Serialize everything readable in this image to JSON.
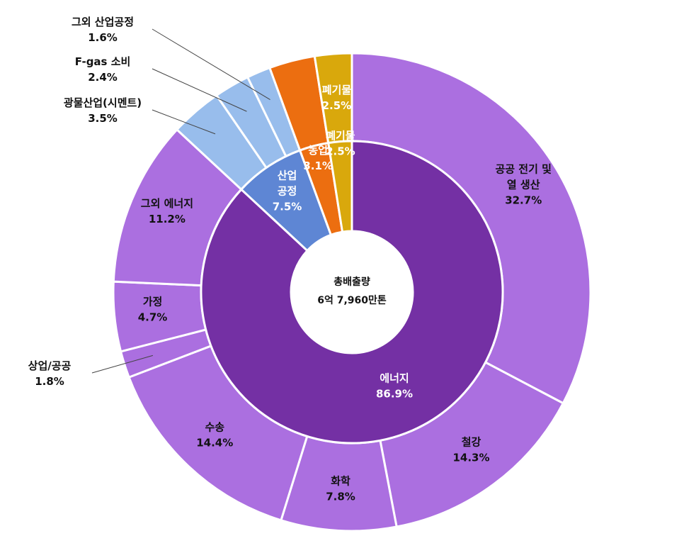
{
  "chart_data": {
    "type": "donut",
    "center": {
      "title": "총배출량",
      "total": "6억 7,960만톤"
    },
    "inner_ring": [
      {
        "name": "에너지",
        "value": 86.9,
        "value_label": "86.9%",
        "color": "#7430a4"
      },
      {
        "name": "산업\n공정",
        "value": 7.5,
        "value_label": "7.5%",
        "color": "#5e86d4"
      },
      {
        "name": "농업",
        "value": 3.1,
        "value_label": "3.1%",
        "color": "#ec6e10"
      },
      {
        "name": "폐기물",
        "value": 2.5,
        "value_label": "2.5%",
        "color": "#d9a80c"
      }
    ],
    "outer_ring": [
      {
        "name": "공공 전기 및\n열 생산",
        "value": 32.7,
        "value_label": "32.7%",
        "parent": "에너지",
        "color": "#ab6fe0"
      },
      {
        "name": "철강",
        "value": 14.3,
        "value_label": "14.3%",
        "parent": "에너지",
        "color": "#ab6fe0"
      },
      {
        "name": "화학",
        "value": 7.8,
        "value_label": "7.8%",
        "parent": "에너지",
        "color": "#ab6fe0"
      },
      {
        "name": "수송",
        "value": 14.4,
        "value_label": "14.4%",
        "parent": "에너지",
        "color": "#ab6fe0"
      },
      {
        "name": "상업/공공",
        "value": 1.8,
        "value_label": "1.8%",
        "parent": "에너지",
        "color": "#ab6fe0"
      },
      {
        "name": "가정",
        "value": 4.7,
        "value_label": "4.7%",
        "parent": "에너지",
        "color": "#ab6fe0"
      },
      {
        "name": "그외 에너지",
        "value": 11.2,
        "value_label": "11.2%",
        "parent": "에너지",
        "color": "#ab6fe0"
      },
      {
        "name": "광물산업(시멘트)",
        "value": 3.5,
        "value_label": "3.5%",
        "parent": "산업공정",
        "color": "#98bdec"
      },
      {
        "name": "F-gas 소비",
        "value": 2.4,
        "value_label": "2.4%",
        "parent": "산업공정",
        "color": "#98bdec"
      },
      {
        "name": "그외 산업공정",
        "value": 1.6,
        "value_label": "1.6%",
        "parent": "산업공정",
        "color": "#98bdec"
      },
      {
        "name": "농업",
        "value": 3.1,
        "value_label": "",
        "parent": "농업",
        "color": "#ec6e10"
      },
      {
        "name": "폐기물",
        "value": 2.5,
        "value_label": "2.5%",
        "parent": "폐기물",
        "color": "#d9a80c"
      }
    ]
  }
}
